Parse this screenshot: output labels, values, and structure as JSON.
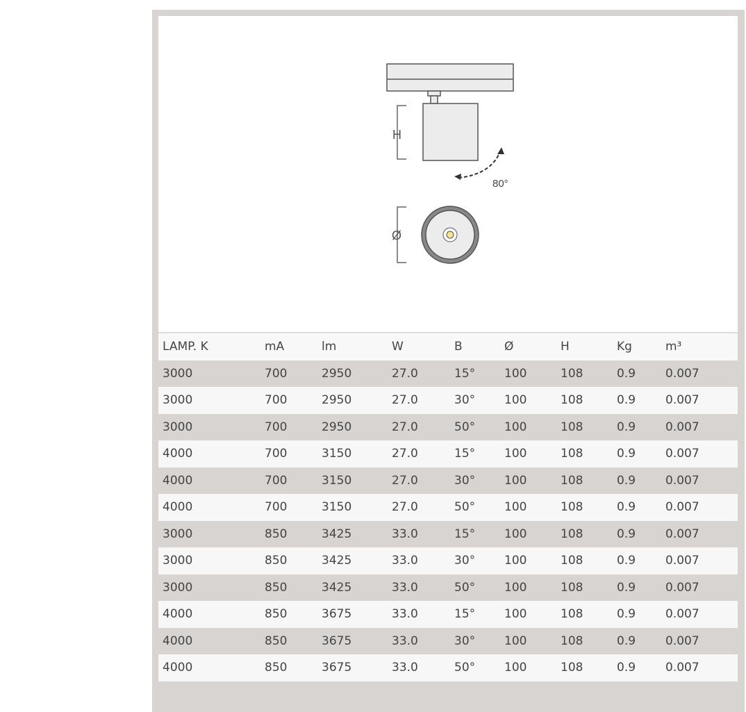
{
  "figure": {
    "dimension_h": "H",
    "dimension_diameter": "Ø",
    "tilt_angle": "80°"
  },
  "table": {
    "headers": [
      "LAMP. K",
      "mA",
      "lm",
      "W",
      "B",
      "Ø",
      "H",
      "Kg",
      "m³"
    ],
    "rows": [
      [
        "3000",
        "700",
        "2950",
        "27.0",
        "15°",
        "100",
        "108",
        "0.9",
        "0.007"
      ],
      [
        "3000",
        "700",
        "2950",
        "27.0",
        "30°",
        "100",
        "108",
        "0.9",
        "0.007"
      ],
      [
        "3000",
        "700",
        "2950",
        "27.0",
        "50°",
        "100",
        "108",
        "0.9",
        "0.007"
      ],
      [
        "4000",
        "700",
        "3150",
        "27.0",
        "15°",
        "100",
        "108",
        "0.9",
        "0.007"
      ],
      [
        "4000",
        "700",
        "3150",
        "27.0",
        "30°",
        "100",
        "108",
        "0.9",
        "0.007"
      ],
      [
        "4000",
        "700",
        "3150",
        "27.0",
        "50°",
        "100",
        "108",
        "0.9",
        "0.007"
      ],
      [
        "3000",
        "850",
        "3425",
        "33.0",
        "15°",
        "100",
        "108",
        "0.9",
        "0.007"
      ],
      [
        "3000",
        "850",
        "3425",
        "33.0",
        "30°",
        "100",
        "108",
        "0.9",
        "0.007"
      ],
      [
        "3000",
        "850",
        "3425",
        "33.0",
        "50°",
        "100",
        "108",
        "0.9",
        "0.007"
      ],
      [
        "4000",
        "850",
        "3675",
        "33.0",
        "15°",
        "100",
        "108",
        "0.9",
        "0.007"
      ],
      [
        "4000",
        "850",
        "3675",
        "33.0",
        "30°",
        "100",
        "108",
        "0.9",
        "0.007"
      ],
      [
        "4000",
        "850",
        "3675",
        "33.0",
        "50°",
        "100",
        "108",
        "0.9",
        "0.007"
      ]
    ]
  }
}
